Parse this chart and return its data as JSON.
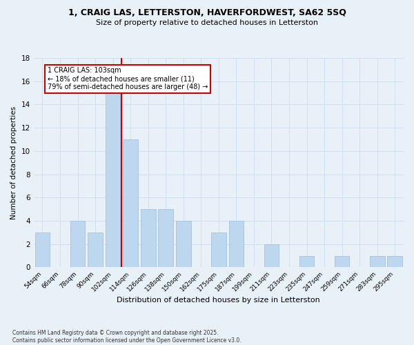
{
  "title_line1": "1, CRAIG LAS, LETTERSTON, HAVERFORDWEST, SA62 5SQ",
  "title_line2": "Size of property relative to detached houses in Letterston",
  "xlabel": "Distribution of detached houses by size in Letterston",
  "ylabel": "Number of detached properties",
  "footnote": "Contains HM Land Registry data © Crown copyright and database right 2025.\nContains public sector information licensed under the Open Government Licence v3.0.",
  "categories": [
    "54sqm",
    "66sqm",
    "78sqm",
    "90sqm",
    "102sqm",
    "114sqm",
    "126sqm",
    "138sqm",
    "150sqm",
    "162sqm",
    "175sqm",
    "187sqm",
    "199sqm",
    "211sqm",
    "223sqm",
    "235sqm",
    "247sqm",
    "259sqm",
    "271sqm",
    "283sqm",
    "295sqm"
  ],
  "values": [
    3,
    0,
    4,
    3,
    15,
    11,
    5,
    5,
    4,
    0,
    3,
    4,
    0,
    2,
    0,
    1,
    0,
    1,
    0,
    1,
    1
  ],
  "bar_color": "#bdd7ee",
  "bar_edge_color": "#9dbbd8",
  "grid_color": "#d0dff0",
  "background_color": "#e8f0f8",
  "annotation_text": "1 CRAIG LAS: 103sqm\n← 18% of detached houses are smaller (11)\n79% of semi-detached houses are larger (48) →",
  "annotation_box_color": "#ffffff",
  "annotation_box_edge": "#cc0000",
  "vline_color": "#cc0000",
  "ylim": [
    0,
    18
  ],
  "yticks": [
    0,
    2,
    4,
    6,
    8,
    10,
    12,
    14,
    16,
    18
  ],
  "vline_x": 4.5
}
